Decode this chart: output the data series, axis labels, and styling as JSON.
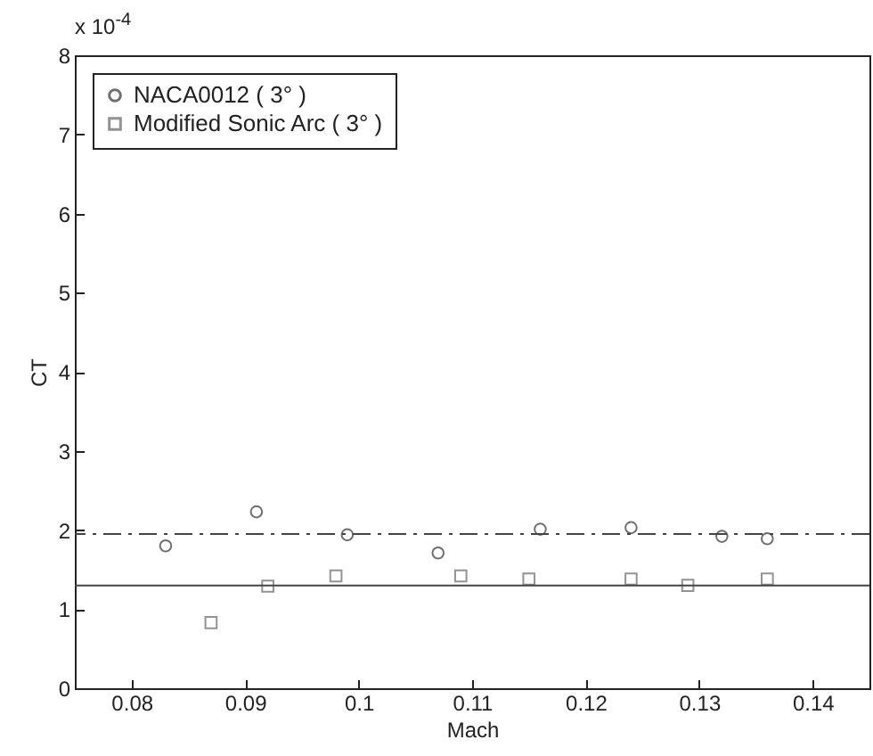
{
  "chart_data": {
    "type": "scatter",
    "xlabel": "Mach",
    "ylabel": "CT",
    "annotations": [
      "x 10$^{-4}$"
    ],
    "xlim": [
      0.075,
      0.145
    ],
    "xticks": [
      0.08,
      0.09,
      {
        "value": 0.1,
        "label": "0.1"
      },
      0.11,
      0.12,
      0.13,
      0.14
    ],
    "ylim": [
      0,
      8
    ],
    "yticks": [
      0,
      1,
      2,
      3,
      4,
      5,
      6,
      7,
      8
    ],
    "marker": "circle",
    "legend": "top left",
    "grid": false,
    "series": [
      {
        "name": "NACA0012 ( 3° )",
        "color": "#333333",
        "x": [
          0.083,
          0.091,
          0.099,
          0.107,
          0.116,
          0.124,
          0.132,
          0.136
        ],
        "values": [
          1.8,
          2.23,
          1.94,
          1.71,
          2.01,
          2.03,
          1.92,
          1.89
        ]
      },
      {
        "name": "Modified Sonic Arc ( 3° )",
        "color": "#666666",
        "marker": "square",
        "x": [
          0.087,
          0.092,
          0.098,
          0.109,
          0.115,
          0.124,
          0.129,
          0.136
        ],
        "values": [
          0.83,
          1.29,
          1.42,
          1.42,
          1.38,
          1.38,
          1.3,
          1.38
        ]
      }
    ],
    "ref_lines": [
      {
        "axis": "y",
        "value": 1.95,
        "color": "#444444",
        "line_style": "dashdot"
      },
      {
        "axis": "y",
        "value": 1.3,
        "color": "#444444",
        "line_style": "solid"
      }
    ]
  }
}
